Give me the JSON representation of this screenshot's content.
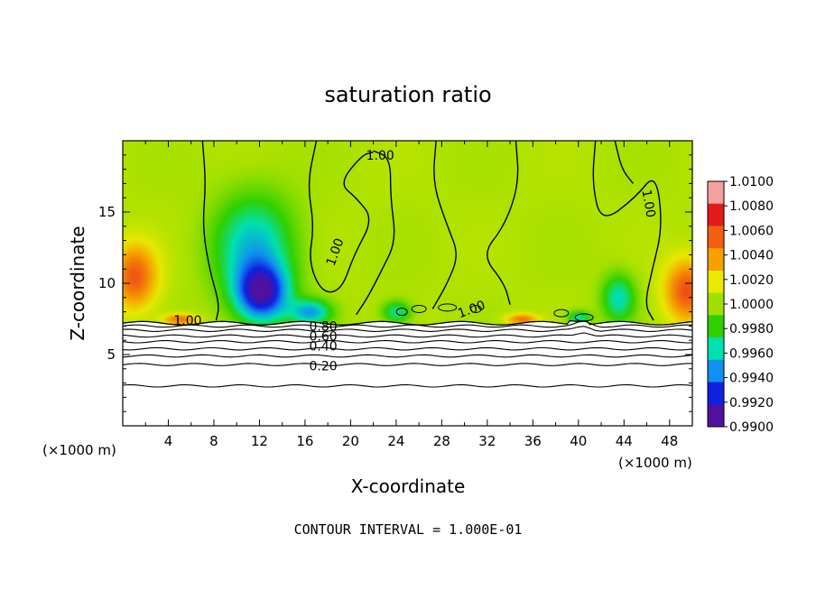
{
  "chart_data": {
    "type": "heatmap",
    "title": "saturation ratio",
    "xlabel": "X-coordinate",
    "ylabel": "Z-coordinate",
    "x_unit_label_left": "(×1000 m)",
    "x_unit_label_right": "(×1000 m)",
    "footer": "CONTOUR INTERVAL = 1.000E-01",
    "xlim": [
      0,
      50
    ],
    "ylim": [
      0,
      20
    ],
    "x_ticks": [
      "4",
      "8",
      "12",
      "16",
      "20",
      "24",
      "28",
      "32",
      "36",
      "40",
      "44",
      "48"
    ],
    "x_tick_values": [
      4,
      8,
      12,
      16,
      20,
      24,
      28,
      32,
      36,
      40,
      44,
      48
    ],
    "y_ticks": [
      "5",
      "10",
      "15"
    ],
    "y_tick_values": [
      5,
      10,
      15
    ],
    "colorbar": {
      "labels": [
        "1.0100",
        "1.0080",
        "1.0060",
        "1.0040",
        "1.0020",
        "1.0000",
        "0.9980",
        "0.9960",
        "0.9940",
        "0.9920",
        "0.9900"
      ],
      "colors": [
        "#f5a0a0",
        "#e41a1a",
        "#f06010",
        "#f5a000",
        "#e8e800",
        "#a0e000",
        "#30d000",
        "#00e0b0",
        "#1090f0",
        "#1020e0",
        "#5010a0"
      ]
    },
    "contour_labels": [
      "1.00",
      "1.00",
      "1.00",
      "1.00",
      "1.00",
      "1.00",
      "0.80",
      "0.60",
      "0.40",
      "0.20"
    ],
    "cloud_base_z": 7.2,
    "lower_contour_levels_z": [
      7.0,
      6.7,
      6.3,
      5.9,
      5.4,
      4.9,
      4.3,
      2.8
    ],
    "field": {
      "background_value": 1.0004,
      "blobs": [
        {
          "x": 1.0,
          "z": 10.5,
          "value": 1.0062,
          "sx": 2.0,
          "sz": 2.3
        },
        {
          "x": 12.2,
          "z": 9.3,
          "value": 0.9918,
          "sx": 2.3,
          "sz": 2.0
        },
        {
          "x": 11.5,
          "z": 12.5,
          "value": 0.9952,
          "sx": 3.6,
          "sz": 3.8
        },
        {
          "x": 16.5,
          "z": 8.0,
          "value": 0.9948,
          "sx": 1.8,
          "sz": 0.9
        },
        {
          "x": 5.0,
          "z": 7.5,
          "value": 1.0055,
          "sx": 1.5,
          "sz": 0.4
        },
        {
          "x": 35.0,
          "z": 7.5,
          "value": 1.0052,
          "sx": 1.4,
          "sz": 0.4
        },
        {
          "x": 49.5,
          "z": 9.5,
          "value": 1.0065,
          "sx": 2.0,
          "sz": 2.2
        },
        {
          "x": 43.5,
          "z": 9.0,
          "value": 0.9958,
          "sx": 1.5,
          "sz": 1.7
        },
        {
          "x": 24.0,
          "z": 8.0,
          "value": 0.9962,
          "sx": 1.3,
          "sz": 0.8
        },
        {
          "x": 40.0,
          "z": 7.6,
          "value": 0.996,
          "sx": 1.0,
          "sz": 0.5
        }
      ]
    }
  }
}
